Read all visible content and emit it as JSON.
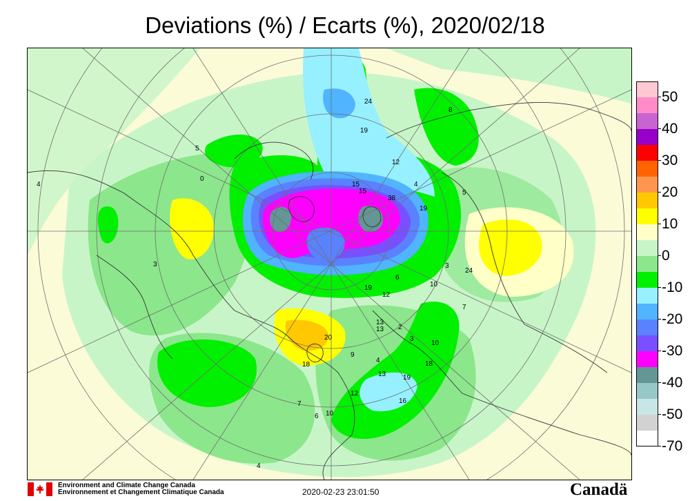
{
  "title": "Deviations (%) / Ecarts (%), 2020/02/18",
  "legend": {
    "bins": [
      {
        "label": "50",
        "color": "#ffc8d2"
      },
      {
        "label": "",
        "color": "#ff8cc8"
      },
      {
        "label": "40",
        "color": "#c864d2"
      },
      {
        "label": "",
        "color": "#9600c8"
      },
      {
        "label": "30",
        "color": "#ff0000"
      },
      {
        "label": "",
        "color": "#ff6400"
      },
      {
        "label": "20",
        "color": "#ff9650"
      },
      {
        "label": "",
        "color": "#ffc800"
      },
      {
        "label": "10",
        "color": "#ffff00"
      },
      {
        "label": "",
        "color": "#ffffc8"
      },
      {
        "label": "0",
        "color": "#c8f5c8"
      },
      {
        "label": "",
        "color": "#8ce68c"
      },
      {
        "label": "-10",
        "color": "#00f000"
      },
      {
        "label": "",
        "color": "#96f0ff"
      },
      {
        "label": "-20",
        "color": "#50b4ff"
      },
      {
        "label": "",
        "color": "#5a82ff"
      },
      {
        "label": "-30",
        "color": "#7850ff"
      },
      {
        "label": "",
        "color": "#ff00ff"
      },
      {
        "label": "-40",
        "color": "#649696"
      },
      {
        "label": "",
        "color": "#96c8c8"
      },
      {
        "label": "-50",
        "color": "#c8e6e6"
      },
      {
        "label": "",
        "color": "#d2d2d2"
      },
      {
        "label": "-70",
        "color": "#ffffff"
      }
    ]
  },
  "station_labels": [
    "24",
    "19",
    "12",
    "8",
    "15",
    "4",
    "5",
    "0",
    "4",
    "3",
    "5",
    "15",
    "38",
    "19",
    "3",
    "24",
    "6",
    "10",
    "7",
    "19",
    "12",
    "2",
    "3",
    "10",
    "20",
    "13",
    "4",
    "18",
    "12",
    "13",
    "19",
    "16",
    "7",
    "6",
    "10",
    "4",
    "18",
    "9",
    "13"
  ],
  "footer": {
    "org_en": "Environment and Climate Change Canada",
    "org_fr": "Environnement et Changement Climatique Canada",
    "timestamp": "2020-02-23 23:01:50",
    "wordmark": "Canadä"
  }
}
